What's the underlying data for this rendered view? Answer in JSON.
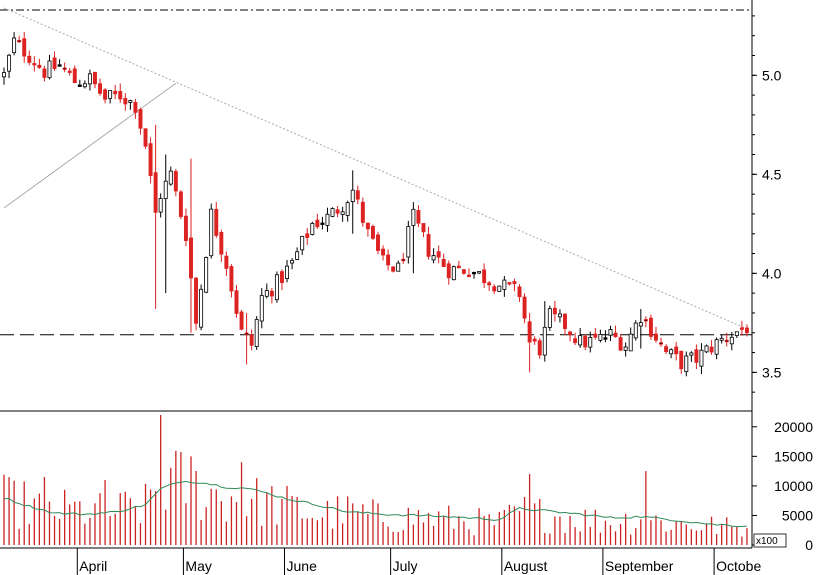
{
  "chart_data": [
    {
      "type": "candlestick",
      "title": "",
      "price_axis": {
        "ticks": [
          "5.0",
          "4.5",
          "4.0",
          "3.5"
        ],
        "tick_values": [
          5.0,
          4.5,
          4.0,
          3.5
        ],
        "range": [
          3.31,
          5.36
        ]
      },
      "support_line": 3.69,
      "upper_dashdot_line": 5.33,
      "months": [
        {
          "label": "April",
          "day": 15
        },
        {
          "label": "May",
          "day": 36
        },
        {
          "label": "June",
          "day": 56
        },
        {
          "label": "July",
          "day": 77
        },
        {
          "label": "August",
          "day": 99
        },
        {
          "label": "September",
          "day": 119
        },
        {
          "label": "Octobe",
          "day": 141
        }
      ],
      "trendlines": [
        {
          "from": [
            0,
            5.34
          ],
          "to": [
            147,
            3.72
          ],
          "style": "dotted"
        },
        {
          "from": [
            0,
            4.33
          ],
          "to": [
            34,
            4.96
          ],
          "style": "thin"
        }
      ],
      "anchors": [
        [
          0,
          5.0
        ],
        [
          2,
          5.17
        ],
        [
          5,
          5.1
        ],
        [
          8,
          5.02
        ],
        [
          11,
          5.05
        ],
        [
          14,
          4.97
        ],
        [
          17,
          4.98
        ],
        [
          20,
          4.88
        ],
        [
          23,
          4.9
        ],
        [
          26,
          4.85
        ],
        [
          28,
          4.65
        ],
        [
          30,
          4.3
        ],
        [
          31,
          4.4
        ],
        [
          33,
          4.5
        ],
        [
          36,
          4.2
        ],
        [
          38,
          3.75
        ],
        [
          41,
          4.3
        ],
        [
          44,
          4.05
        ],
        [
          47,
          3.7
        ],
        [
          49,
          3.64
        ],
        [
          51,
          3.88
        ],
        [
          54,
          3.95
        ],
        [
          57,
          4.05
        ],
        [
          61,
          4.25
        ],
        [
          64,
          4.28
        ],
        [
          67,
          4.35
        ],
        [
          69,
          4.42
        ],
        [
          72,
          4.2
        ],
        [
          75,
          4.05
        ],
        [
          78,
          4.02
        ],
        [
          81,
          4.28
        ],
        [
          84,
          4.12
        ],
        [
          88,
          4.02
        ],
        [
          92,
          4.02
        ],
        [
          95,
          3.98
        ],
        [
          99,
          3.93
        ],
        [
          102,
          3.9
        ],
        [
          104,
          3.65
        ],
        [
          106,
          3.62
        ],
        [
          108,
          3.78
        ],
        [
          111,
          3.74
        ],
        [
          114,
          3.65
        ],
        [
          117,
          3.66
        ],
        [
          120,
          3.69
        ],
        [
          123,
          3.64
        ],
        [
          126,
          3.79
        ],
        [
          128,
          3.72
        ],
        [
          131,
          3.6
        ],
        [
          134,
          3.55
        ],
        [
          137,
          3.57
        ],
        [
          140,
          3.63
        ],
        [
          143,
          3.68
        ],
        [
          147,
          3.73
        ]
      ],
      "spikes": [
        {
          "day": 30,
          "high": 4.75,
          "low": 3.82
        },
        {
          "day": 32,
          "high": 4.6,
          "low": 3.9
        },
        {
          "day": 37,
          "high": 4.58,
          "low": 3.7
        },
        {
          "day": 48,
          "high": 3.8,
          "low": 3.54
        },
        {
          "day": 69,
          "high": 4.52,
          "low": 4.2
        },
        {
          "day": 81,
          "high": 4.36,
          "low": 4.0
        },
        {
          "day": 104,
          "high": 3.8,
          "low": 3.5
        },
        {
          "day": 107,
          "high": 3.86,
          "low": 3.6
        },
        {
          "day": 126,
          "high": 3.82,
          "low": 3.62
        },
        {
          "day": 135,
          "high": 3.6,
          "low": 3.48
        }
      ]
    },
    {
      "type": "bar",
      "series": [
        {
          "values": []
        }
      ],
      "volume_axis": {
        "ticks": [
          "20000",
          "15000",
          "10000",
          "5000",
          "0"
        ],
        "tick_values": [
          20000,
          15000,
          10000,
          5000,
          0
        ],
        "range": [
          0,
          22500
        ],
        "unit": "x100"
      },
      "volume_anchors": [
        [
          0,
          8000
        ],
        [
          10,
          6500
        ],
        [
          20,
          6000
        ],
        [
          28,
          7000
        ],
        [
          31,
          12000
        ],
        [
          36,
          11000
        ],
        [
          42,
          9000
        ],
        [
          50,
          8000
        ],
        [
          56,
          7000
        ],
        [
          62,
          5500
        ],
        [
          68,
          6000
        ],
        [
          75,
          5000
        ],
        [
          82,
          5000
        ],
        [
          90,
          4500
        ],
        [
          98,
          4000
        ],
        [
          102,
          6000
        ],
        [
          108,
          5500
        ],
        [
          114,
          4800
        ],
        [
          120,
          4200
        ],
        [
          126,
          4800
        ],
        [
          132,
          4000
        ],
        [
          140,
          3500
        ],
        [
          147,
          3000
        ]
      ],
      "volume_spikes": [
        {
          "day": 31,
          "value": 22000
        },
        {
          "day": 37,
          "value": 15000
        },
        {
          "day": 47,
          "value": 14000
        },
        {
          "day": 8,
          "value": 11500
        },
        {
          "day": 20,
          "value": 11000
        },
        {
          "day": 104,
          "value": 12000
        },
        {
          "day": 127,
          "value": 12500
        }
      ],
      "ma_anchors": [
        [
          0,
          8000
        ],
        [
          4,
          6800
        ],
        [
          10,
          5400
        ],
        [
          16,
          5200
        ],
        [
          22,
          5600
        ],
        [
          28,
          6800
        ],
        [
          31,
          9500
        ],
        [
          35,
          10800
        ],
        [
          39,
          10600
        ],
        [
          44,
          9800
        ],
        [
          48,
          9600
        ],
        [
          52,
          8800
        ],
        [
          56,
          7800
        ],
        [
          62,
          6800
        ],
        [
          68,
          5600
        ],
        [
          75,
          5200
        ],
        [
          82,
          5000
        ],
        [
          90,
          4700
        ],
        [
          98,
          4300
        ],
        [
          102,
          6200
        ],
        [
          108,
          5700
        ],
        [
          114,
          5200
        ],
        [
          120,
          4600
        ],
        [
          126,
          4800
        ],
        [
          132,
          4300
        ],
        [
          140,
          3500
        ],
        [
          147,
          3200
        ]
      ],
      "colors": {
        "volume": "#cc2222",
        "ma": "#2e8b57"
      }
    }
  ],
  "colors": {
    "up": "#ffffff",
    "down": "#dd2222",
    "neutral": "#000000",
    "grid": "#000000"
  }
}
